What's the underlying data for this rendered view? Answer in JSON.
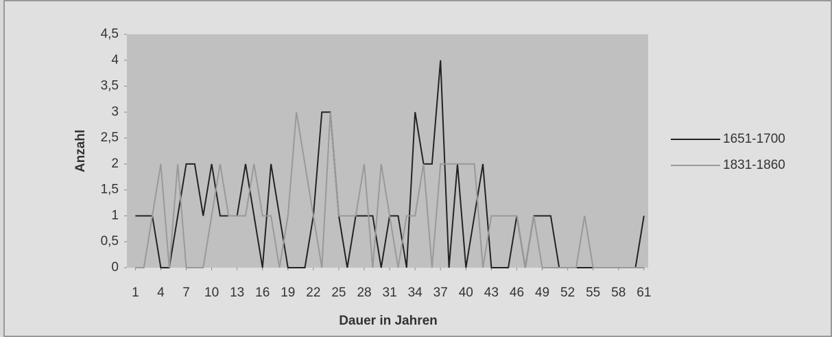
{
  "chart_data": {
    "type": "line",
    "x": [
      1,
      2,
      3,
      4,
      5,
      6,
      7,
      8,
      9,
      10,
      11,
      12,
      13,
      14,
      15,
      16,
      17,
      18,
      19,
      20,
      21,
      22,
      23,
      24,
      25,
      26,
      27,
      28,
      29,
      30,
      31,
      32,
      33,
      34,
      35,
      36,
      37,
      38,
      39,
      40,
      41,
      42,
      43,
      44,
      45,
      46,
      47,
      48,
      49,
      50,
      51,
      52,
      53,
      54,
      55,
      56,
      57,
      58,
      59,
      60,
      61
    ],
    "series": [
      {
        "name": "1651-1700",
        "color": "#222222",
        "values": [
          1,
          1,
          1,
          0,
          0,
          1,
          2,
          2,
          1,
          2,
          1,
          1,
          1,
          2,
          1,
          0,
          2,
          1,
          0,
          0,
          0,
          1,
          3,
          3,
          1,
          0,
          1,
          1,
          1,
          0,
          1,
          1,
          0,
          3,
          2,
          2,
          4,
          0,
          2,
          0,
          1,
          2,
          0,
          0,
          0,
          1,
          0,
          1,
          1,
          1,
          0,
          0,
          0,
          0,
          0,
          0,
          0,
          0,
          0,
          0,
          1
        ]
      },
      {
        "name": "1831-1860",
        "color": "#999999",
        "values": [
          0,
          0,
          1,
          2,
          0,
          2,
          0,
          0,
          0,
          1,
          2,
          1,
          1,
          1,
          2,
          1,
          1,
          0,
          1,
          3,
          2,
          1,
          0,
          3,
          1,
          1,
          1,
          2,
          0,
          2,
          1,
          0,
          1,
          1,
          2,
          0,
          2,
          2,
          2,
          2,
          2,
          0,
          1,
          1,
          1,
          1,
          0,
          1,
          0,
          0,
          0,
          0,
          0,
          1,
          0,
          0,
          0,
          0,
          0,
          0,
          0
        ]
      }
    ],
    "xlim": [
      0,
      61.5
    ],
    "xticks": [
      1,
      4,
      7,
      10,
      13,
      16,
      19,
      22,
      25,
      28,
      31,
      34,
      37,
      40,
      43,
      46,
      49,
      52,
      55,
      58,
      61
    ],
    "ylim": [
      0,
      4.5
    ],
    "yticks": [
      0,
      {
        "value": 0.5,
        "label": "0,5"
      },
      1,
      {
        "value": 1.5,
        "label": "1,5"
      },
      2,
      {
        "value": 2.5,
        "label": "2,5"
      },
      3,
      {
        "value": 3.5,
        "label": "3,5"
      },
      4,
      {
        "value": 4.5,
        "label": "4,5"
      }
    ],
    "xlabel": "Dauer in Jahren",
    "ylabel": "Anzahl",
    "legend": "right"
  }
}
